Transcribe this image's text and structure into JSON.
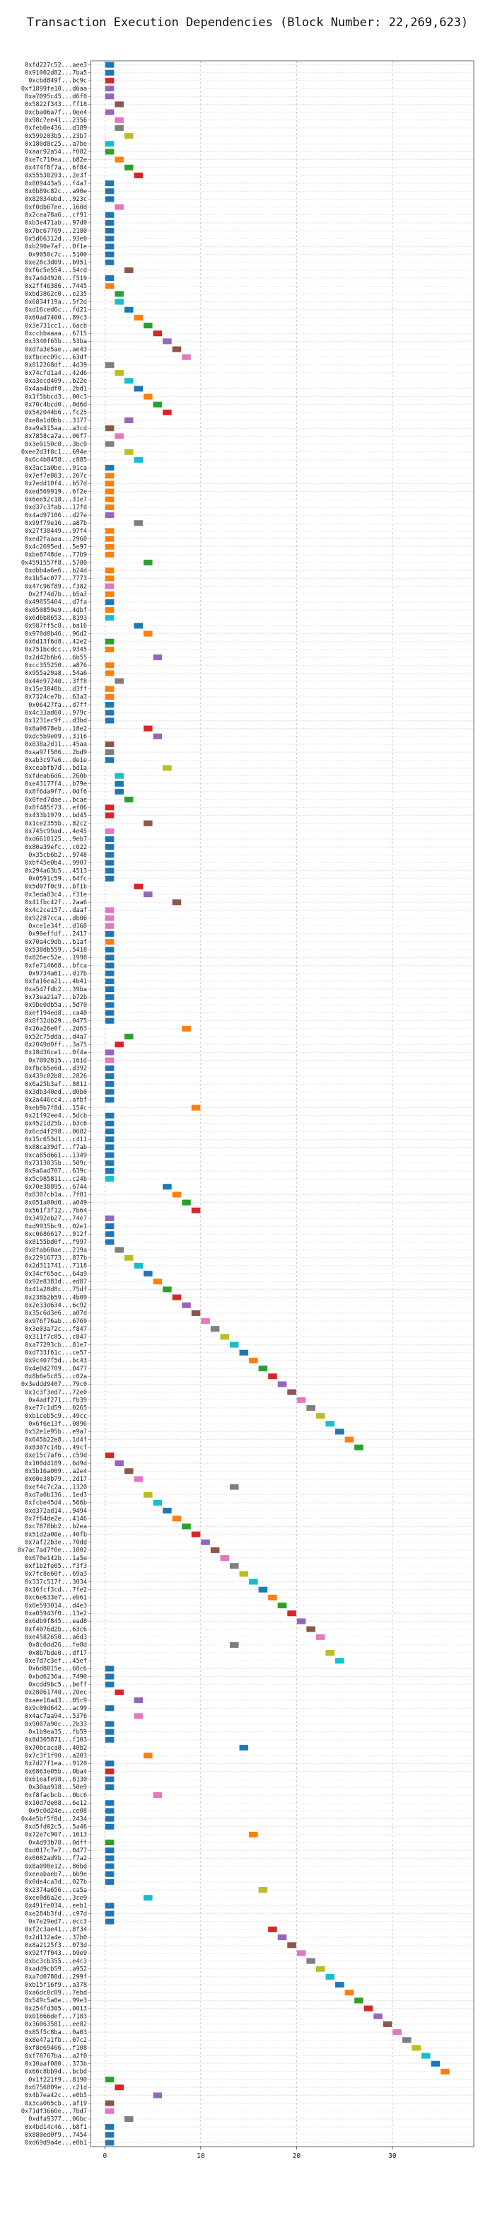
{
  "chart_data": {
    "type": "bar",
    "orientation": "horizontal",
    "title": "Transaction Execution Dependencies (Block Number: 22,269,623)",
    "xlabel": "",
    "ylabel": "",
    "xlim": [
      -1.5,
      38.5
    ],
    "xticks": [
      0,
      10,
      20,
      30
    ],
    "grid": true,
    "palette": [
      "#1f77b4",
      "#ff7f0e",
      "#2ca02c",
      "#d62728",
      "#9467bd",
      "#8c564b",
      "#e377c2",
      "#7f7f7f",
      "#bcbd22",
      "#17becf"
    ],
    "transactions": [
      [
        "0xfd227c52...aee3",
        0,
        0
      ],
      [
        "0x91002d82...7ba5",
        0,
        0
      ],
      [
        "0xcbd849f...bc9c",
        0,
        3
      ],
      [
        "0xf1899fe10...d6aa",
        0,
        4
      ],
      [
        "0xa7095c45...d6f0",
        0,
        4
      ],
      [
        "0x5822f343...ff18",
        1,
        5
      ],
      [
        "0xcba06a7f...0ee4",
        0,
        4
      ],
      [
        "0x98c7ee41...2356",
        1,
        6
      ],
      [
        "0xfeb0e436...d389",
        1,
        7
      ],
      [
        "0x599203b5...23b7",
        2,
        8
      ],
      [
        "0x180d8c25...a7be",
        0,
        9
      ],
      [
        "0xaac92a54...f082",
        0,
        2
      ],
      [
        "0xe7c710ea...b82e",
        1,
        1
      ],
      [
        "0x474f8f7a...6f84",
        2,
        2
      ],
      [
        "0x55530293...2e3f",
        3,
        3
      ],
      [
        "0x809443a5...f4a7",
        0,
        0
      ],
      [
        "0x0b89c82c...a90e",
        0,
        0
      ],
      [
        "0x82034ebd...923c",
        0,
        0
      ],
      [
        "0xf0db67ee...160d",
        1,
        6
      ],
      [
        "0x2cea78a6...cf91",
        0,
        0
      ],
      [
        "0xb3e471ab...97d0",
        0,
        0
      ],
      [
        "0x7bc67769...2180",
        0,
        0
      ],
      [
        "0x5d66312d...93e0",
        0,
        0
      ],
      [
        "0xb290e7af...0f1e",
        0,
        0
      ],
      [
        "0x9050c7c...5100",
        0,
        0
      ],
      [
        "0xe28c3d09...b951",
        0,
        0
      ],
      [
        "0xf6c5e554...54cd",
        2,
        5
      ],
      [
        "0x7a4d4920...f519",
        0,
        0
      ],
      [
        "0x2ff46386...7445",
        0,
        1
      ],
      [
        "0xbd3862c0...e235",
        1,
        2
      ],
      [
        "0x6834f19a...5f2d",
        1,
        9
      ],
      [
        "0xd16ced6c...fd21",
        2,
        0
      ],
      [
        "0x60ad7400...89c3",
        3,
        1
      ],
      [
        "0x3e731cc1...6acb",
        4,
        2
      ],
      [
        "0xccbbaaaa...6715",
        5,
        3
      ],
      [
        "0x3340f65b...53ba",
        6,
        4
      ],
      [
        "0xd7a3e5ae...ae43",
        7,
        5
      ],
      [
        "0xfbcec09c...63df",
        8,
        6
      ],
      [
        "0x812268df...4d39",
        0,
        7
      ],
      [
        "0x74cfd1a4...42d6",
        1,
        8
      ],
      [
        "0xa3ecd409...b22e",
        2,
        9
      ],
      [
        "0x4aa4bdf0...2bd1",
        3,
        0
      ],
      [
        "0x1f5bbcd3...00c3",
        4,
        1
      ],
      [
        "0x70c4bcd0...0d6d",
        5,
        2
      ],
      [
        "0x542044b6...fc25",
        6,
        3
      ],
      [
        "0xe8a1d0bb...3177",
        2,
        4
      ],
      [
        "0xa9a515aa...a3cd",
        0,
        5
      ],
      [
        "0x7858ca7a...06f7",
        1,
        6
      ],
      [
        "0x3e0150c0...3bc0",
        0,
        7
      ],
      [
        "0xee2d3f8c1...694e",
        2,
        8
      ],
      [
        "0x6c4b8458...c885",
        3,
        9
      ],
      [
        "0x3ac1a0be...91ca",
        0,
        0
      ],
      [
        "0x7ef7e863...267c",
        0,
        1
      ],
      [
        "0x7edd10f4...b57d",
        0,
        1
      ],
      [
        "0xed569919...6f2e",
        0,
        1
      ],
      [
        "0x6ee52c18...31e7",
        0,
        1
      ],
      [
        "0xd37c3fab...17fd",
        0,
        1
      ],
      [
        "0x4ad97106...d27e",
        0,
        4
      ],
      [
        "0x99f79e16...a87b",
        3,
        7
      ],
      [
        "0x27f38449...97f4",
        0,
        1
      ],
      [
        "0xed2faaaa...2960",
        0,
        1
      ],
      [
        "0x4c2695ed...5e97",
        0,
        1
      ],
      [
        "0xbe8748de...77b9",
        0,
        1
      ],
      [
        "0x4591557f8...5780",
        4,
        2
      ],
      [
        "0xdbb4a6e6...b24d",
        0,
        1
      ],
      [
        "0x1b5ac077...7773",
        0,
        1
      ],
      [
        "0x47c96f89...f382",
        0,
        6
      ],
      [
        "0x2f74d7b...b5a3",
        0,
        1
      ],
      [
        "0x49855404...d7fa",
        0,
        0
      ],
      [
        "0x050859e9...4dbf",
        0,
        1
      ],
      [
        "0x6d6b8653...8193",
        0,
        9
      ],
      [
        "0x987ff5c8...ba16",
        3,
        0
      ],
      [
        "0x970d0b46...96d2",
        4,
        1
      ],
      [
        "0x6d13f6d8...42e2",
        0,
        2
      ],
      [
        "0x751bcdcc...9345",
        0,
        1
      ],
      [
        "0x2d42b6b6...6b55",
        5,
        4
      ],
      [
        "0xcc355250...a876",
        0,
        1
      ],
      [
        "0x955a29a8...54a6",
        0,
        1
      ],
      [
        "0x44e97240...3ff8",
        1,
        7
      ],
      [
        "0x15e3040b...d3ff",
        0,
        1
      ],
      [
        "0x7324ce7b...63a3",
        0,
        1
      ],
      [
        "0x06427fa...d7ff",
        0,
        0
      ],
      [
        "0x4c33ad60...979c",
        0,
        0
      ],
      [
        "0x1231ec9f...d3bd",
        0,
        0
      ],
      [
        "0x8a0678eb...18e2",
        4,
        3
      ],
      [
        "0xdc5b9e09...3116",
        5,
        4
      ],
      [
        "0x838a2d11...45aa",
        0,
        5
      ],
      [
        "0xaa97f506...2bd9",
        0,
        7
      ],
      [
        "0xab3c97e6...de1e",
        0,
        0
      ],
      [
        "0xceabfb7d...bd1a",
        6,
        8
      ],
      [
        "0xfdeab6d6...260b",
        1,
        9
      ],
      [
        "0xe43177f4...b79e",
        1,
        0
      ],
      [
        "0x8f6da9f7...0df6",
        1,
        0
      ],
      [
        "0x0fed7dae...bcae",
        2,
        2
      ],
      [
        "0x8f485f73...ef06",
        0,
        3
      ],
      [
        "0x433b1979...bd45",
        0,
        3
      ],
      [
        "0x1ce2355b...82c2",
        4,
        5
      ],
      [
        "0x745c99ad...4e45",
        0,
        6
      ],
      [
        "0xd6610125...9eb7",
        0,
        0
      ],
      [
        "0x80a39efc...c022",
        0,
        0
      ],
      [
        "0x35cb6b2...9748",
        0,
        0
      ],
      [
        "0xbf45e0b4...9907",
        0,
        0
      ],
      [
        "0x294a63b5...4513",
        0,
        0
      ],
      [
        "0x0591c59...64fc",
        0,
        0
      ],
      [
        "0x5d07f0c9...bf1b",
        3,
        3
      ],
      [
        "0x3eda83c4...f31e",
        4,
        4
      ],
      [
        "0x41fbc42f...2aa6",
        7,
        5
      ],
      [
        "0x4c2ce157...daaf",
        0,
        6
      ],
      [
        "0x92287cca...db06",
        0,
        6
      ],
      [
        "0xce1e34f...d168",
        0,
        6
      ],
      [
        "0x90effdf...2417",
        0,
        0
      ],
      [
        "0x70a4c9db...b1af",
        0,
        1
      ],
      [
        "0x538db559...5418",
        0,
        0
      ],
      [
        "0x826ec52e...1998",
        0,
        0
      ],
      [
        "0xfe714668...bfca",
        0,
        0
      ],
      [
        "0x9734a61...d17b",
        0,
        0
      ],
      [
        "0xfa16ea21...4b41",
        0,
        0
      ],
      [
        "0xa547fdb2...39ba",
        0,
        0
      ],
      [
        "0x73ea21a7...b72b",
        0,
        0
      ],
      [
        "0x9be0db5a...5d70",
        0,
        0
      ],
      [
        "0xef194ed8...ca40",
        0,
        0
      ],
      [
        "0x8f32db29...0475",
        0,
        0
      ],
      [
        "0x16a26e0f...2d63",
        8,
        1
      ],
      [
        "0x52c75dda...d4a7",
        2,
        2
      ],
      [
        "0x2049d0ff...3a75",
        1,
        3
      ],
      [
        "0x18d36ce1...0f4a",
        0,
        4
      ],
      [
        "0x7092815...161d",
        0,
        6
      ],
      [
        "0xfbcb5e6d...d392",
        0,
        0
      ],
      [
        "0x439c02b8...2826",
        0,
        0
      ],
      [
        "0x6a25b3af...8811",
        0,
        0
      ],
      [
        "0x3db340ed...d0b0",
        0,
        0
      ],
      [
        "0x2a446cc4...afbf",
        0,
        0
      ],
      [
        "0xeb9b7f8d...154c",
        9,
        1
      ],
      [
        "0x21f92ee4...5dcb",
        0,
        0
      ],
      [
        "0x4521d25b...b3c6",
        0,
        0
      ],
      [
        "0x6cd4f298...0682",
        0,
        0
      ],
      [
        "0x15c653d1...c411",
        0,
        0
      ],
      [
        "0x88ca39df...f7ab",
        0,
        0
      ],
      [
        "0xca85d661...1349",
        0,
        0
      ],
      [
        "0x7313035b...509c",
        0,
        0
      ],
      [
        "0x9a6ad707...639c",
        0,
        0
      ],
      [
        "0x5c985811...c24b",
        0,
        9
      ],
      [
        "0x70e38895...6744",
        6,
        0
      ],
      [
        "0x8307cb1a...7f81",
        7,
        1
      ],
      [
        "0x051a00d0...a049",
        8,
        2
      ],
      [
        "0x561f3f12...7b64",
        9,
        3
      ],
      [
        "0x3492eb27...74e7",
        0,
        4
      ],
      [
        "0xd9935bc9...02e1",
        0,
        0
      ],
      [
        "0xc0686617...912f",
        0,
        0
      ],
      [
        "0x8155bd0f...f997",
        0,
        0
      ],
      [
        "0x8fab60ae...219a",
        1,
        7
      ],
      [
        "0x22916773...877b",
        2,
        8
      ],
      [
        "0x2d311741...7118",
        3,
        9
      ],
      [
        "0x34cf65ac...64a9",
        4,
        0
      ],
      [
        "0x92e8383d...ed87",
        5,
        1
      ],
      [
        "0x41a20d8c...75df",
        6,
        2
      ],
      [
        "0x238b2b59...4b09",
        7,
        3
      ],
      [
        "0x2e33d634...6c92",
        8,
        4
      ],
      [
        "0x35c6d3e6...a07d",
        9,
        5
      ],
      [
        "0x976f76ab...6769",
        10,
        6
      ],
      [
        "0x3e03a72c...f847",
        11,
        7
      ],
      [
        "0x311f7c85...c847",
        12,
        8
      ],
      [
        "0xa77293cb...81e7",
        13,
        9
      ],
      [
        "0xd733f61c...ce57",
        14,
        0
      ],
      [
        "0x9c407f5d...bc43",
        15,
        1
      ],
      [
        "0x4e0d2709...0477",
        16,
        2
      ],
      [
        "0x8b6e5c85...c02a",
        17,
        3
      ],
      [
        "0x3eddd9407...79c0",
        18,
        4
      ],
      [
        "0x1c3f3ed7...72e0",
        19,
        5
      ],
      [
        "0x4adf271...fb39",
        20,
        6
      ],
      [
        "0xe77c1d59...0265",
        21,
        7
      ],
      [
        "0xb1ceb5c9...49cc",
        22,
        8
      ],
      [
        "0x6f6e13f...0896",
        23,
        9
      ],
      [
        "0x52e1e95b...e9a7",
        24,
        0
      ],
      [
        "0x645b22e8...1d4f",
        25,
        1
      ],
      [
        "0x8307c14b...49cf",
        26,
        2
      ],
      [
        "0xe15c7af6...c59d",
        0,
        3
      ],
      [
        "0x100d4189...6d9d",
        1,
        4
      ],
      [
        "0x5b16a009...a2e4",
        2,
        5
      ],
      [
        "0x60e30b79...2d17",
        3,
        6
      ],
      [
        "0xef4c7c2a...1320",
        13,
        7
      ],
      [
        "0xd7a0b136...1ed3",
        4,
        8
      ],
      [
        "0xfcbe45d4...566b",
        5,
        9
      ],
      [
        "0xd372ad14...9494",
        6,
        0
      ],
      [
        "0x7f64de2e...4146",
        7,
        1
      ],
      [
        "0xc7878bb2...b2ea",
        8,
        2
      ],
      [
        "0x51d2a00e...40fb",
        9,
        3
      ],
      [
        "0x7af22b3e...70dd",
        10,
        4
      ],
      [
        "0x7ac7ad7f0e...1002",
        11,
        5
      ],
      [
        "0x670e142b...1a5e",
        12,
        6
      ],
      [
        "0xf1b2fe65...f3f3",
        13,
        7
      ],
      [
        "0x7fc8e60f...69a3",
        14,
        8
      ],
      [
        "0x337c517f...3034",
        15,
        9
      ],
      [
        "0x16fcf3cd...7fe2",
        16,
        0
      ],
      [
        "0xc6e633e7...eb61",
        17,
        1
      ],
      [
        "0x0e593014...d4e3",
        18,
        2
      ],
      [
        "0xa05943f0...13e2",
        19,
        3
      ],
      [
        "0x6db9f845...ead8",
        20,
        4
      ],
      [
        "0xf4076d2b...63c6",
        21,
        5
      ],
      [
        "0xe4582650...a6d3",
        22,
        6
      ],
      [
        "0x8c0dd26...fe8d",
        13,
        7
      ],
      [
        "0x8b7bde0...df17",
        23,
        8
      ],
      [
        "0xe7d7c3ef...45ef",
        24,
        9
      ],
      [
        "0x6d8015e...68c6",
        0,
        0
      ],
      [
        "0xbd6236a...7490",
        0,
        0
      ],
      [
        "0xcdd9bc5...beff",
        0,
        0
      ],
      [
        "0x28061740...20ec",
        1,
        3
      ],
      [
        "0xaee16a43...05c9",
        3,
        4
      ],
      [
        "0x9c09d642...ac99",
        0,
        0
      ],
      [
        "0x4ac7aa94...5376",
        3,
        6
      ],
      [
        "0x9007a90c...2b33",
        0,
        0
      ],
      [
        "0x1b9ea35...fb59",
        0,
        0
      ],
      [
        "0x8d305871...f103",
        0,
        0
      ],
      [
        "0x70bcaca8...40b2",
        14,
        0
      ],
      [
        "0x7c3f1f90...a203",
        4,
        1
      ],
      [
        "0x7d27f1ea...9120",
        0,
        0
      ],
      [
        "0x6863e05b...0ba4",
        0,
        3
      ],
      [
        "0x61eafe98...8130",
        0,
        0
      ],
      [
        "0x30aa918...50e9",
        0,
        0
      ],
      [
        "0xf8facbcb...0bc6",
        5,
        6
      ],
      [
        "0x10d7de08...6e12",
        0,
        0
      ],
      [
        "0x9c0d24e...ce08",
        0,
        0
      ],
      [
        "0x4e5bf5f8d...2434",
        0,
        0
      ],
      [
        "0xd5fd02c5...5a46",
        0,
        0
      ],
      [
        "0x72e7c907...1613",
        15,
        1
      ],
      [
        "0x4d93b78...0dff",
        0,
        2
      ],
      [
        "0xd017c7e7...0477",
        0,
        0
      ],
      [
        "0x0082ad9b...f7a2",
        0,
        0
      ],
      [
        "0x8a098e12...86bd",
        0,
        0
      ],
      [
        "0xeeabaeb7...bb9e",
        0,
        0
      ],
      [
        "0x0de4ca3d...027b",
        0,
        0
      ],
      [
        "0x2374a656...ca5a",
        16,
        8
      ],
      [
        "0xee0d6a2e...3ce9",
        4,
        9
      ],
      [
        "0x491fe034...eeb1",
        0,
        0
      ],
      [
        "0xe284b3fd...c97d",
        0,
        0
      ],
      [
        "0x7e29ed7...ecc3",
        0,
        0
      ],
      [
        "0xf2c3ae41...8f34",
        17,
        3
      ],
      [
        "0x2d132a4e...37b0",
        18,
        4
      ],
      [
        "0x8a2125f3...073d",
        19,
        5
      ],
      [
        "0x92f7f043...b9e9",
        20,
        6
      ],
      [
        "0xbc3cb355...e4c3",
        21,
        7
      ],
      [
        "0xadd9cb59...a952",
        22,
        8
      ],
      [
        "0xa7d0780d...299f",
        23,
        9
      ],
      [
        "0xb15f16f9...a378",
        24,
        0
      ],
      [
        "0xa6dc0c09...7ebd",
        25,
        1
      ],
      [
        "0x549c5a0e...99e3",
        26,
        2
      ],
      [
        "0x254fd305...0013",
        27,
        3
      ],
      [
        "0x01866def...7183",
        28,
        4
      ],
      [
        "0x36063581...ee82",
        29,
        5
      ],
      [
        "0x85f5c8ba...0a03",
        30,
        6
      ],
      [
        "0x8e47a1fb...07c2",
        31,
        7
      ],
      [
        "0xf8e69466...f108",
        32,
        8
      ],
      [
        "0xf78767ba...a2f0",
        33,
        9
      ],
      [
        "0x10aaf080...373b",
        34,
        0
      ],
      [
        "0x66c8bb9d...bcbd",
        35,
        1
      ],
      [
        "0x1f221f9...8190",
        0,
        2
      ],
      [
        "0x6756809e...c21d",
        1,
        3
      ],
      [
        "0x4b7ea42c...e0b5",
        5,
        4
      ],
      [
        "0x3ca065cb...af19",
        0,
        5
      ],
      [
        "0x71df3660e...7bd7",
        0,
        6
      ],
      [
        "0xdfa9377...06bc",
        2,
        7
      ],
      [
        "0x4bd14c46...b8f1",
        0,
        0
      ],
      [
        "0x880ed0f9...7454",
        0,
        0
      ],
      [
        "0xd69d9a4e...e0b1",
        0,
        0
      ]
    ]
  }
}
